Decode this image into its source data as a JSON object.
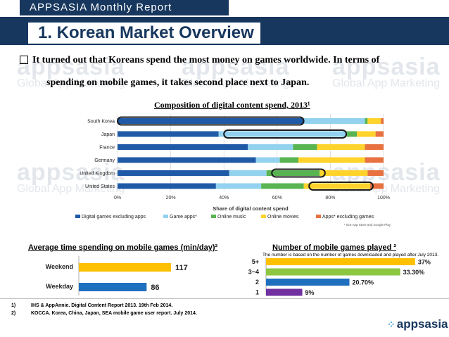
{
  "header": {
    "tag": "APPSASIA  Monthly  Report",
    "title": "1. Korean Market Overview"
  },
  "watermark": {
    "brand": "appsasia",
    "tagline": "Global App Marketing"
  },
  "intro": {
    "line1": "It turned out that Koreans spend the most money on games worldwide. In terms of",
    "line2": "spending on mobile games, it takes second place next to Japan."
  },
  "chart_data": [
    {
      "type": "bar",
      "stacked": true,
      "orientation": "horizontal",
      "title": "Composition of digital content spend, 2013¹",
      "xlabel": "Share of digital content spend",
      "xlim": [
        0,
        100
      ],
      "ticks": [
        "0%",
        "20%",
        "40%",
        "60%",
        "80%",
        "100%"
      ],
      "categories": [
        "South Korea",
        "Japan",
        "France",
        "Germany",
        "United Kingdom",
        "United States"
      ],
      "series": [
        {
          "name": "Digital games excluding apps",
          "color": "#1f5aa6",
          "values": [
            70,
            38,
            49,
            52,
            42,
            37
          ]
        },
        {
          "name": "Game apps*",
          "color": "#93d2ef",
          "values": [
            23,
            48,
            17,
            9,
            14,
            17
          ]
        },
        {
          "name": "Online music",
          "color": "#58b451",
          "values": [
            1,
            4,
            9,
            7,
            20,
            16
          ]
        },
        {
          "name": "Online movies",
          "color": "#ffd32b",
          "values": [
            5,
            7,
            18,
            25,
            18,
            25
          ]
        },
        {
          "name": "Apps* excluding games",
          "color": "#e87140",
          "values": [
            1,
            3,
            7,
            7,
            6,
            5
          ]
        }
      ],
      "highlights": [
        {
          "category": "South Korea",
          "from": 0,
          "to": 70
        },
        {
          "category": "Japan",
          "from": 40,
          "to": 86
        },
        {
          "category": "United Kingdom",
          "from": 58,
          "to": 78
        },
        {
          "category": "United States",
          "from": 72,
          "to": 96
        }
      ],
      "legend": [
        "Digital games excluding apps",
        "Game apps*",
        "Online music",
        "Online movies",
        "Apps* excluding games"
      ],
      "note": "* IOS App Store and Google Play"
    },
    {
      "type": "bar",
      "orientation": "horizontal",
      "title": "Average time spending on mobile games (min/day)²",
      "categories": [
        "Weekend",
        "Weekday"
      ],
      "values": [
        117,
        86
      ],
      "colors": [
        "#ffc000",
        "#1f6fbf"
      ],
      "labels": [
        "117",
        "86"
      ],
      "xlim": [
        0,
        125
      ]
    },
    {
      "type": "bar",
      "orientation": "horizontal",
      "title": "Number of mobile games played ²",
      "note": "The number is based on the number of games downloaded and played after July 2013.",
      "categories": [
        "5+",
        "3~4",
        "2",
        "1"
      ],
      "values": [
        37,
        33.3,
        20.7,
        9
      ],
      "colors": [
        "#ffc000",
        "#8dc641",
        "#1f6fbf",
        "#7030a0"
      ],
      "labels": [
        "37%",
        "33.30%",
        "20.70%",
        "9%"
      ],
      "xlim": [
        0,
        40
      ]
    }
  ],
  "footnotes": [
    {
      "num": "1)",
      "text": "IHS & AppAnnie. Digital Content Report 2013. 19th Feb 2014."
    },
    {
      "num": "2)",
      "text": "KOCCA. Korea, China, Japan, SEA mobile game user report. July 2014."
    }
  ],
  "footer": {
    "logo": "appsasia"
  }
}
